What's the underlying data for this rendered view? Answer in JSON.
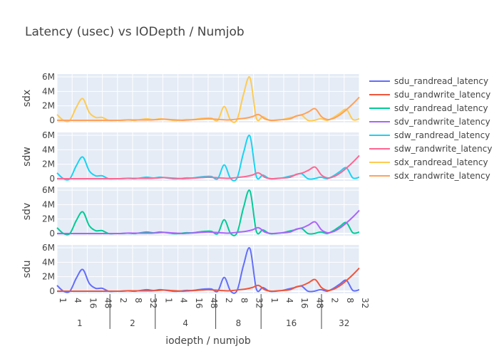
{
  "chart_data": {
    "type": "line",
    "title": "Latency (usec) vs IODepth / Numjob",
    "xlabel": "iodepth / numjob",
    "x_ticks": [
      "1",
      "4",
      "16",
      "48",
      "2",
      "8",
      "32",
      "1",
      "4",
      "16",
      "48",
      "2",
      "8",
      "32",
      "1",
      "4",
      "16",
      "48",
      "2",
      "8",
      "32"
    ],
    "x_group_labels": [
      "1",
      "2",
      "4",
      "8",
      "16",
      "32"
    ],
    "y_ticks": [
      "0",
      "2M",
      "4M",
      "6M"
    ],
    "ylim": [
      -300000,
      6400000
    ],
    "grid": true,
    "legend_position": "right",
    "rows": [
      {
        "label": "sdx",
        "series": [
          {
            "name": "sdx_randread_latency",
            "color": "#FECB52",
            "values": [
              800000,
              0,
              0,
              1800000,
              3000000,
              1100000,
              400000,
              400000,
              0,
              0,
              0,
              50000,
              0,
              100000,
              200000,
              100000,
              200000,
              100000,
              0,
              0,
              100000,
              100000,
              200000,
              300000,
              300000,
              0,
              1900000,
              0,
              100000,
              3600000,
              5900000,
              300000,
              500000,
              0,
              0,
              100000,
              300000,
              500000,
              700000,
              0,
              0,
              200000,
              0,
              400000,
              1000000,
              1500000,
              100000,
              200000
            ]
          },
          {
            "name": "sdx_randwrite_latency",
            "color": "#FFA15A",
            "values": [
              0,
              0,
              0,
              0,
              0,
              0,
              0,
              0,
              0,
              0,
              0,
              50000,
              50000,
              50000,
              50000,
              50000,
              100000,
              150000,
              100000,
              50000,
              0,
              50000,
              100000,
              150000,
              200000,
              150000,
              100000,
              50000,
              100000,
              200000,
              300000,
              500000,
              800000,
              200000,
              0,
              50000,
              100000,
              200000,
              600000,
              800000,
              1200000,
              1600000,
              500000,
              100000,
              300000,
              800000,
              1500000,
              2300000,
              3200000
            ]
          }
        ]
      },
      {
        "label": "sdw",
        "series": [
          {
            "name": "sdw_randread_latency",
            "color": "#19D3F3",
            "values": [
              800000,
              0,
              0,
              1800000,
              3000000,
              1100000,
              400000,
              400000,
              0,
              0,
              0,
              50000,
              0,
              100000,
              200000,
              100000,
              200000,
              100000,
              0,
              0,
              100000,
              100000,
              200000,
              300000,
              300000,
              0,
              1900000,
              0,
              100000,
              3600000,
              5900000,
              300000,
              500000,
              0,
              0,
              100000,
              300000,
              500000,
              700000,
              0,
              0,
              200000,
              0,
              400000,
              1000000,
              1500000,
              100000,
              200000
            ]
          },
          {
            "name": "sdw_randwrite_latency",
            "color": "#FF6692",
            "values": [
              0,
              0,
              0,
              0,
              0,
              0,
              0,
              0,
              0,
              0,
              0,
              50000,
              50000,
              50000,
              50000,
              50000,
              100000,
              150000,
              100000,
              50000,
              0,
              50000,
              100000,
              150000,
              200000,
              150000,
              100000,
              50000,
              100000,
              200000,
              300000,
              500000,
              800000,
              200000,
              0,
              50000,
              100000,
              200000,
              600000,
              800000,
              1200000,
              1600000,
              500000,
              100000,
              300000,
              800000,
              1500000,
              2300000,
              3200000
            ]
          }
        ]
      },
      {
        "label": "sdv",
        "series": [
          {
            "name": "sdv_randread_latency",
            "color": "#00CC96",
            "values": [
              800000,
              0,
              0,
              1800000,
              3000000,
              1100000,
              400000,
              400000,
              0,
              0,
              0,
              50000,
              0,
              100000,
              200000,
              100000,
              200000,
              100000,
              0,
              0,
              100000,
              100000,
              200000,
              300000,
              300000,
              0,
              1900000,
              0,
              100000,
              3600000,
              5900000,
              300000,
              500000,
              0,
              0,
              100000,
              300000,
              500000,
              700000,
              0,
              0,
              200000,
              0,
              400000,
              1000000,
              1500000,
              100000,
              200000
            ]
          },
          {
            "name": "sdv_randwrite_latency",
            "color": "#AB63FA",
            "values": [
              0,
              0,
              0,
              0,
              0,
              0,
              0,
              0,
              0,
              0,
              0,
              50000,
              50000,
              50000,
              50000,
              50000,
              100000,
              150000,
              100000,
              50000,
              0,
              50000,
              100000,
              150000,
              200000,
              150000,
              100000,
              50000,
              100000,
              200000,
              300000,
              500000,
              800000,
              200000,
              0,
              50000,
              100000,
              200000,
              600000,
              800000,
              1200000,
              1600000,
              500000,
              100000,
              300000,
              800000,
              1500000,
              2300000,
              3200000
            ]
          }
        ]
      },
      {
        "label": "sdu",
        "series": [
          {
            "name": "sdu_randread_latency",
            "color": "#636EFA",
            "values": [
              800000,
              0,
              0,
              1800000,
              3000000,
              1100000,
              400000,
              400000,
              0,
              0,
              0,
              50000,
              0,
              100000,
              200000,
              100000,
              200000,
              100000,
              0,
              0,
              100000,
              100000,
              200000,
              300000,
              300000,
              0,
              1900000,
              0,
              100000,
              3600000,
              5900000,
              300000,
              500000,
              0,
              0,
              100000,
              300000,
              500000,
              700000,
              0,
              0,
              200000,
              0,
              400000,
              1000000,
              1500000,
              100000,
              200000
            ]
          },
          {
            "name": "sdu_randwrite_latency",
            "color": "#EF553B",
            "values": [
              0,
              0,
              0,
              0,
              0,
              0,
              0,
              0,
              0,
              0,
              0,
              50000,
              50000,
              50000,
              50000,
              50000,
              100000,
              150000,
              100000,
              50000,
              0,
              50000,
              100000,
              150000,
              200000,
              150000,
              100000,
              50000,
              100000,
              200000,
              300000,
              500000,
              800000,
              200000,
              0,
              50000,
              100000,
              200000,
              600000,
              800000,
              1200000,
              1600000,
              500000,
              100000,
              300000,
              800000,
              1500000,
              2300000,
              3200000
            ]
          }
        ]
      }
    ],
    "legend": [
      {
        "name": "sdu_randread_latency",
        "color": "#636EFA"
      },
      {
        "name": "sdu_randwrite_latency",
        "color": "#EF553B"
      },
      {
        "name": "sdv_randread_latency",
        "color": "#00CC96"
      },
      {
        "name": "sdv_randwrite_latency",
        "color": "#AB63FA"
      },
      {
        "name": "sdw_randread_latency",
        "color": "#19D3F3"
      },
      {
        "name": "sdw_randwrite_latency",
        "color": "#FF6692"
      },
      {
        "name": "sdx_randread_latency",
        "color": "#FECB52"
      },
      {
        "name": "sdx_randwrite_latency",
        "color": "#FFA15A"
      }
    ]
  }
}
